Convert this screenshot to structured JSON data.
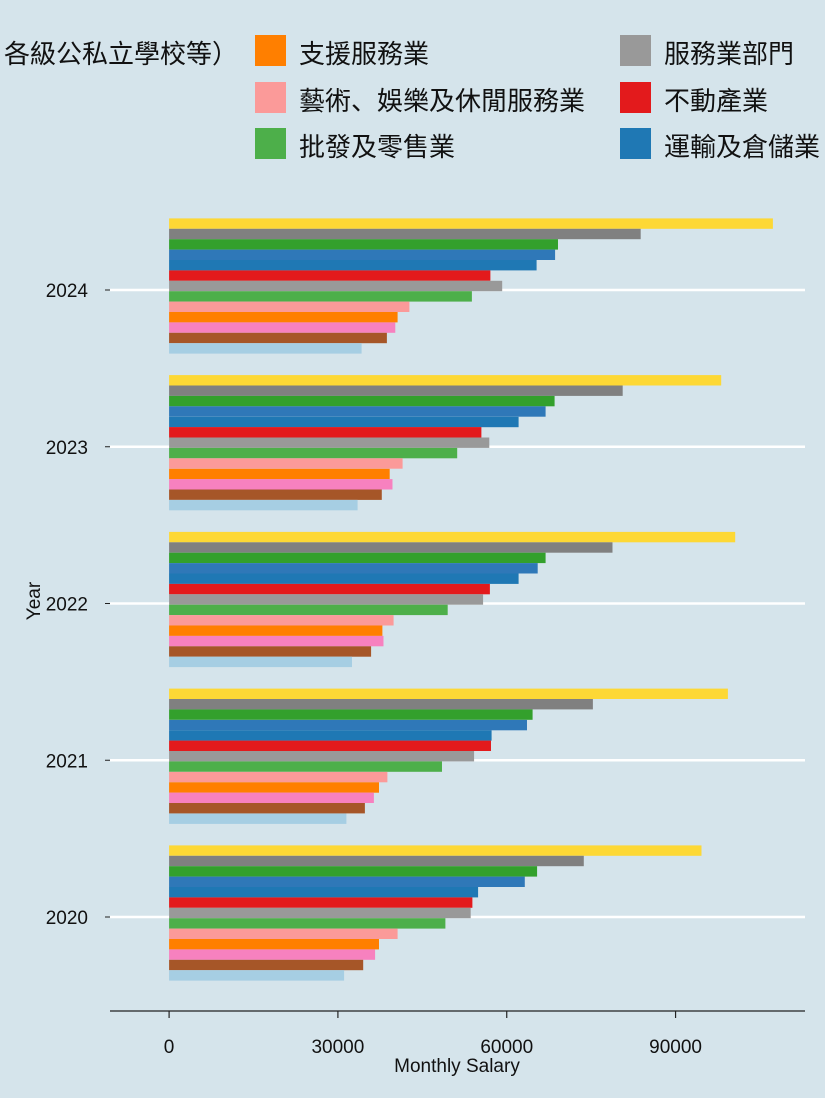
{
  "chart_data": {
    "type": "bar",
    "orientation": "horizontal",
    "xlabel": "Monthly Salary",
    "ylabel": "Year",
    "xlim": [
      -10500,
      113000
    ],
    "xticks": [
      0,
      30000,
      60000,
      90000
    ],
    "xtick_labels": [
      "0",
      "30000",
      "60000",
      "90000"
    ],
    "categories": [
      "2024",
      "2023",
      "2022",
      "2021",
      "2020"
    ],
    "grid": "horizontal-major-white",
    "legend_position": "top",
    "legend_partial_text": "各級公私立學校等）",
    "series": [
      {
        "name": "",
        "color": "#fdd835",
        "show_in_legend": false,
        "values": [
          107300,
          98100,
          100600,
          99300,
          94600
        ]
      },
      {
        "name": "",
        "color": "#808080",
        "show_in_legend": false,
        "values": [
          83800,
          80600,
          78800,
          75300,
          73700
        ]
      },
      {
        "name": "",
        "color": "#33a02c",
        "show_in_legend": false,
        "values": [
          69100,
          68500,
          66900,
          64600,
          65400
        ]
      },
      {
        "name": "",
        "color": "#2f78b8",
        "show_in_legend": false,
        "values": [
          68600,
          66900,
          65500,
          63600,
          63200
        ]
      },
      {
        "name": "運輸及倉儲業",
        "color": "#1f78b4",
        "show_in_legend": true,
        "values": [
          65300,
          62100,
          62100,
          57300,
          54900
        ]
      },
      {
        "name": "不動產業",
        "color": "#e31a1c",
        "show_in_legend": true,
        "values": [
          57100,
          55500,
          57000,
          57200,
          53900
        ]
      },
      {
        "name": "服務業部門",
        "color": "#999999",
        "show_in_legend": true,
        "values": [
          59200,
          56900,
          55800,
          54200,
          53600
        ]
      },
      {
        "name": "批發及零售業",
        "color": "#4daf4a",
        "show_in_legend": true,
        "values": [
          53800,
          51200,
          49500,
          48500,
          49100
        ]
      },
      {
        "name": "藝術、娛樂及休閒服務業",
        "color": "#fb9a99",
        "show_in_legend": true,
        "values": [
          42700,
          41500,
          39900,
          38800,
          40600
        ]
      },
      {
        "name": "支援服務業",
        "color": "#ff7f00",
        "show_in_legend": true,
        "values": [
          40600,
          39200,
          37900,
          37300,
          37300
        ]
      },
      {
        "name": "",
        "color": "#f781bf",
        "show_in_legend": false,
        "values": [
          40200,
          39700,
          38100,
          36400,
          36600
        ]
      },
      {
        "name": "",
        "color": "#a65628",
        "show_in_legend": false,
        "values": [
          38700,
          37800,
          35900,
          34800,
          34500
        ]
      },
      {
        "name": "",
        "color": "#a6cee3",
        "show_in_legend": false,
        "values": [
          34200,
          33500,
          32500,
          31500,
          31100
        ]
      }
    ]
  }
}
